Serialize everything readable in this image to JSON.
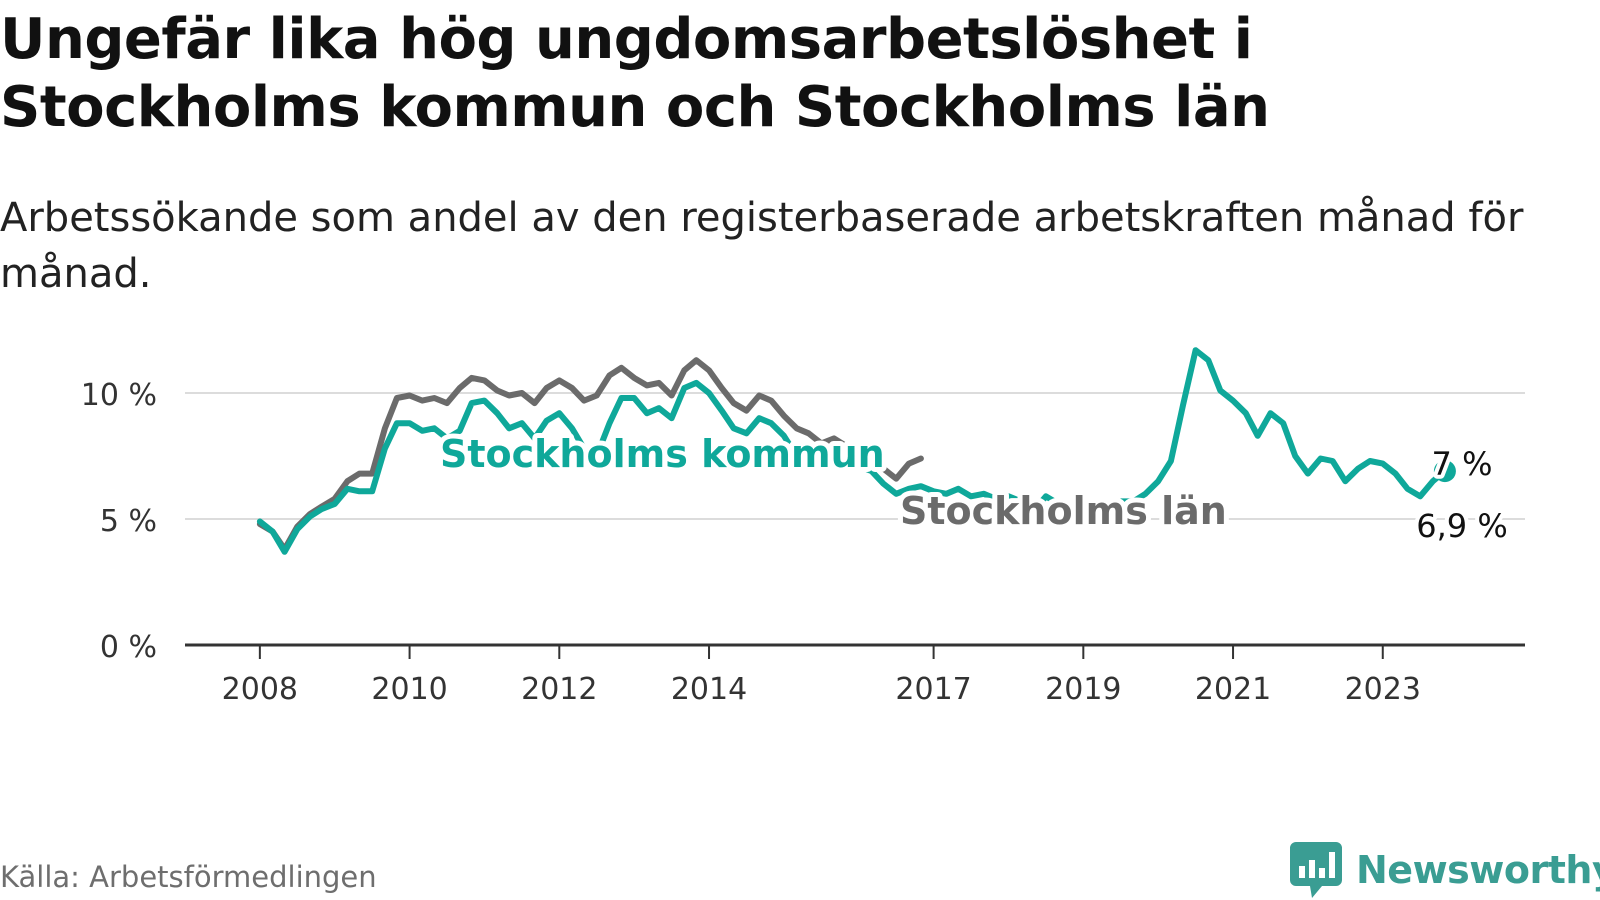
{
  "title": "Ungefär lika hög ungdomsarbetslöshet i Stockholms kommun och Stockholms län",
  "subtitle": "Arbetssökande som andel av den registerbaserade arbetskraften månad för månad.",
  "source": "Källa: Arbetsförmedlingen",
  "brand": {
    "name": "Newsworthy",
    "icon": "newsworthy-logo-icon",
    "color": "#3a9d93"
  },
  "colors": {
    "kommun": "#0fa89a",
    "lan": "#6b6b6b",
    "grid": "#dcdcdc",
    "axis": "#333333"
  },
  "chart_data": {
    "type": "line",
    "title": "",
    "xlabel": "",
    "ylabel": "",
    "ylim": [
      0,
      12.5
    ],
    "xlim": [
      2007.0,
      2024.9
    ],
    "yticks": [
      {
        "value": 0,
        "label": "0 %"
      },
      {
        "value": 5,
        "label": "5 %"
      },
      {
        "value": 10,
        "label": "10 %"
      }
    ],
    "xticks": [
      {
        "value": 2008,
        "label": "2008"
      },
      {
        "value": 2010,
        "label": "2010"
      },
      {
        "value": 2012,
        "label": "2012"
      },
      {
        "value": 2014,
        "label": "2014"
      },
      {
        "value": 2017,
        "label": "2017"
      },
      {
        "value": 2019,
        "label": "2019"
      },
      {
        "value": 2021,
        "label": "2021"
      },
      {
        "value": 2023,
        "label": "2023"
      }
    ],
    "grid": true,
    "series": [
      {
        "name": "Stockholms län",
        "color": "#6b6b6b",
        "end_label": "7 %",
        "points": [
          [
            2008.0,
            4.8
          ],
          [
            2008.17,
            4.5
          ],
          [
            2008.33,
            3.8
          ],
          [
            2008.5,
            4.7
          ],
          [
            2008.67,
            5.2
          ],
          [
            2008.83,
            5.5
          ],
          [
            2009.0,
            5.8
          ],
          [
            2009.17,
            6.5
          ],
          [
            2009.33,
            6.8
          ],
          [
            2009.5,
            6.8
          ],
          [
            2009.67,
            8.6
          ],
          [
            2009.83,
            9.8
          ],
          [
            2010.0,
            9.9
          ],
          [
            2010.17,
            9.7
          ],
          [
            2010.33,
            9.8
          ],
          [
            2010.5,
            9.6
          ],
          [
            2010.67,
            10.2
          ],
          [
            2010.83,
            10.6
          ],
          [
            2011.0,
            10.5
          ],
          [
            2011.17,
            10.1
          ],
          [
            2011.33,
            9.9
          ],
          [
            2011.5,
            10.0
          ],
          [
            2011.67,
            9.6
          ],
          [
            2011.83,
            10.2
          ],
          [
            2012.0,
            10.5
          ],
          [
            2012.17,
            10.2
          ],
          [
            2012.33,
            9.7
          ],
          [
            2012.5,
            9.9
          ],
          [
            2012.67,
            10.7
          ],
          [
            2012.83,
            11.0
          ],
          [
            2013.0,
            10.6
          ],
          [
            2013.17,
            10.3
          ],
          [
            2013.33,
            10.4
          ],
          [
            2013.5,
            9.9
          ],
          [
            2013.67,
            10.9
          ],
          [
            2013.83,
            11.3
          ],
          [
            2014.0,
            10.9
          ],
          [
            2014.17,
            10.2
          ],
          [
            2014.33,
            9.6
          ],
          [
            2014.5,
            9.3
          ],
          [
            2014.67,
            9.9
          ],
          [
            2014.83,
            9.7
          ],
          [
            2015.0,
            9.1
          ],
          [
            2015.17,
            8.6
          ],
          [
            2015.33,
            8.4
          ],
          [
            2015.5,
            8.0
          ],
          [
            2015.67,
            8.2
          ],
          [
            2015.83,
            7.9
          ],
          [
            2016.0,
            7.7
          ],
          [
            2016.17,
            7.4
          ],
          [
            2016.33,
            7.0
          ],
          [
            2016.5,
            6.6
          ],
          [
            2016.67,
            7.2
          ],
          [
            2016.83,
            7.4
          ]
        ]
      },
      {
        "name": "Stockholms kommun",
        "color": "#0fa89a",
        "end_label": "6,9 %",
        "points": [
          [
            2008.0,
            4.9
          ],
          [
            2008.17,
            4.5
          ],
          [
            2008.33,
            3.7
          ],
          [
            2008.5,
            4.6
          ],
          [
            2008.67,
            5.1
          ],
          [
            2008.83,
            5.4
          ],
          [
            2009.0,
            5.6
          ],
          [
            2009.17,
            6.2
          ],
          [
            2009.33,
            6.1
          ],
          [
            2009.5,
            6.1
          ],
          [
            2009.67,
            7.8
          ],
          [
            2009.83,
            8.8
          ],
          [
            2010.0,
            8.8
          ],
          [
            2010.17,
            8.5
          ],
          [
            2010.33,
            8.6
          ],
          [
            2010.5,
            8.2
          ],
          [
            2010.67,
            8.5
          ],
          [
            2010.83,
            9.6
          ],
          [
            2011.0,
            9.7
          ],
          [
            2011.17,
            9.2
          ],
          [
            2011.33,
            8.6
          ],
          [
            2011.5,
            8.8
          ],
          [
            2011.67,
            8.2
          ],
          [
            2011.83,
            8.9
          ],
          [
            2012.0,
            9.2
          ],
          [
            2012.17,
            8.6
          ],
          [
            2012.33,
            7.8
          ],
          [
            2012.5,
            7.5
          ],
          [
            2012.67,
            8.8
          ],
          [
            2012.83,
            9.8
          ],
          [
            2013.0,
            9.8
          ],
          [
            2013.17,
            9.2
          ],
          [
            2013.33,
            9.4
          ],
          [
            2013.5,
            9.0
          ],
          [
            2013.67,
            10.2
          ],
          [
            2013.83,
            10.4
          ],
          [
            2014.0,
            10.0
          ],
          [
            2014.17,
            9.3
          ],
          [
            2014.33,
            8.6
          ],
          [
            2014.5,
            8.4
          ],
          [
            2014.67,
            9.0
          ],
          [
            2014.83,
            8.8
          ],
          [
            2015.0,
            8.3
          ],
          [
            2015.17,
            7.5
          ],
          [
            2015.33,
            7.1
          ],
          [
            2015.5,
            7.9
          ],
          [
            2015.67,
            7.8
          ],
          [
            2015.83,
            7.3
          ],
          [
            2016.0,
            7.1
          ],
          [
            2016.17,
            6.9
          ],
          [
            2016.33,
            6.4
          ],
          [
            2016.5,
            6.0
          ],
          [
            2016.67,
            6.2
          ],
          [
            2016.83,
            6.3
          ],
          [
            2017.0,
            6.1
          ],
          [
            2017.17,
            6.0
          ],
          [
            2017.33,
            6.2
          ],
          [
            2017.5,
            5.9
          ],
          [
            2017.67,
            6.0
          ],
          [
            2017.83,
            5.8
          ],
          [
            2018.0,
            5.9
          ],
          [
            2018.17,
            5.7
          ],
          [
            2018.33,
            5.3
          ],
          [
            2018.5,
            5.9
          ],
          [
            2018.67,
            5.6
          ],
          [
            2018.83,
            5.5
          ],
          [
            2019.0,
            5.4
          ],
          [
            2019.17,
            5.2
          ],
          [
            2019.33,
            4.8
          ],
          [
            2019.5,
            5.7
          ],
          [
            2019.67,
            5.7
          ],
          [
            2019.83,
            6.0
          ],
          [
            2020.0,
            6.5
          ],
          [
            2020.17,
            7.3
          ],
          [
            2020.33,
            9.5
          ],
          [
            2020.5,
            11.7
          ],
          [
            2020.67,
            11.3
          ],
          [
            2020.83,
            10.1
          ],
          [
            2021.0,
            9.7
          ],
          [
            2021.17,
            9.2
          ],
          [
            2021.33,
            8.3
          ],
          [
            2021.5,
            9.2
          ],
          [
            2021.67,
            8.8
          ],
          [
            2021.83,
            7.5
          ],
          [
            2022.0,
            6.8
          ],
          [
            2022.17,
            7.4
          ],
          [
            2022.33,
            7.3
          ],
          [
            2022.5,
            6.5
          ],
          [
            2022.67,
            7.0
          ],
          [
            2022.83,
            7.3
          ],
          [
            2023.0,
            7.2
          ],
          [
            2023.17,
            6.8
          ],
          [
            2023.33,
            6.2
          ],
          [
            2023.5,
            5.9
          ],
          [
            2023.67,
            6.5
          ],
          [
            2023.83,
            6.9
          ]
        ]
      }
    ]
  }
}
